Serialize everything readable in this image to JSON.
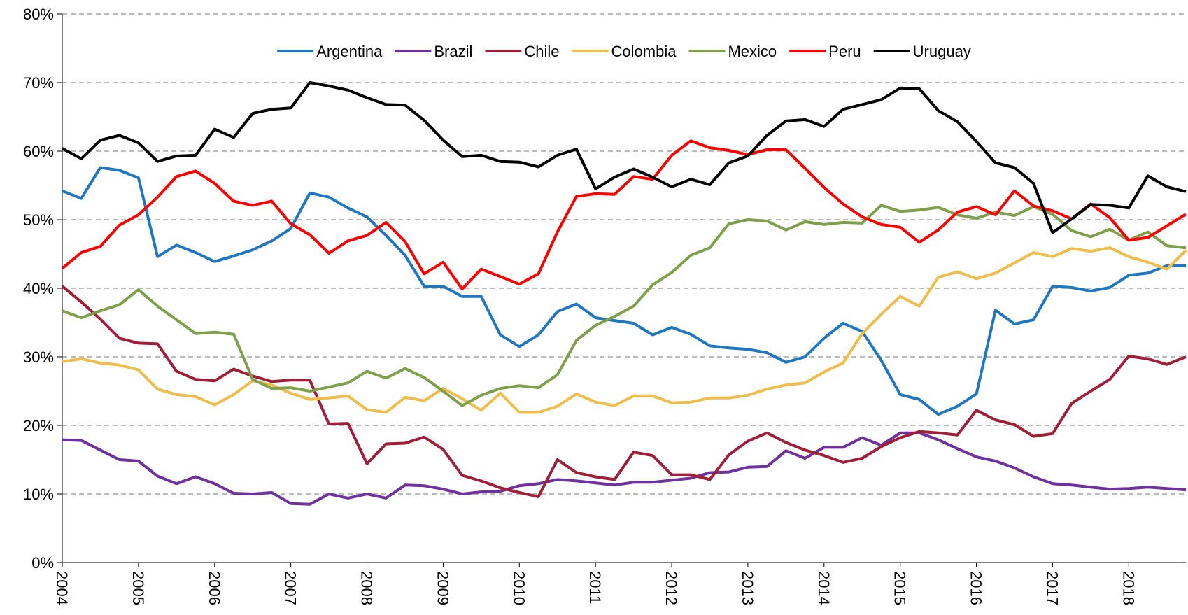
{
  "chart_data": {
    "type": "line",
    "categories": [
      "2004",
      null,
      null,
      null,
      "2005",
      null,
      null,
      null,
      "2006",
      null,
      null,
      null,
      "2007",
      null,
      null,
      null,
      "2008",
      null,
      null,
      null,
      "2009",
      null,
      null,
      null,
      "2010",
      null,
      null,
      null,
      "2011",
      null,
      null,
      null,
      "2012",
      null,
      null,
      null,
      "2013",
      null,
      null,
      null,
      "2014",
      null,
      null,
      null,
      "2015",
      null,
      null,
      null,
      "2016",
      null,
      null,
      null,
      "2017",
      null,
      null,
      null,
      "2018",
      null,
      null,
      null
    ],
    "ylim": [
      0,
      80
    ],
    "yticks": [
      {
        "value": 0,
        "label": "0%"
      },
      {
        "value": 10,
        "label": "10%"
      },
      {
        "value": 20,
        "label": "20%"
      },
      {
        "value": 30,
        "label": "30%"
      },
      {
        "value": 40,
        "label": "40%"
      },
      {
        "value": 50,
        "label": "50%"
      },
      {
        "value": 60,
        "label": "60%"
      },
      {
        "value": 70,
        "label": "70%"
      },
      {
        "value": 80,
        "label": "80%"
      }
    ],
    "grid": true,
    "legend": "top",
    "series": [
      {
        "name": "Argentina",
        "color": "#1f77c4",
        "values": [
          54.2,
          53.1,
          57.6,
          57.2,
          56.1,
          44.6,
          46.3,
          45.2,
          43.9,
          44.7,
          45.6,
          46.9,
          48.7,
          53.9,
          53.3,
          51.7,
          50.4,
          47.7,
          44.8,
          40.3,
          40.3,
          38.8,
          38.8,
          33.2,
          31.5,
          33.2,
          36.6,
          37.7,
          35.7,
          35.3,
          34.9,
          33.2,
          34.3,
          33.3,
          31.6,
          31.3,
          31.1,
          30.6,
          29.2,
          30.0,
          32.7,
          34.9,
          33.7,
          29.5,
          24.5,
          23.8,
          21.6,
          22.8,
          24.6,
          36.8,
          34.8,
          35.4,
          40.3,
          40.1,
          39.6,
          40.1,
          41.9,
          42.2,
          43.3,
          43.3
        ]
      },
      {
        "name": "Brazil",
        "color": "#7030a0",
        "values": [
          17.9,
          17.8,
          16.4,
          15.0,
          14.8,
          12.6,
          11.5,
          12.5,
          11.5,
          10.1,
          10.0,
          10.2,
          8.6,
          8.5,
          10.0,
          9.4,
          10.0,
          9.4,
          11.3,
          11.2,
          10.7,
          10.0,
          10.3,
          10.4,
          11.2,
          11.5,
          12.1,
          11.9,
          11.6,
          11.3,
          11.7,
          11.7,
          12.0,
          12.3,
          13.1,
          13.2,
          13.9,
          14.0,
          16.3,
          15.2,
          16.8,
          16.8,
          18.2,
          17.1,
          18.9,
          18.9,
          17.9,
          16.6,
          15.4,
          14.8,
          13.8,
          12.5,
          11.5,
          11.3,
          11.0,
          10.7,
          10.8,
          11.0,
          10.8,
          10.6
        ]
      },
      {
        "name": "Chile",
        "color": "#a31d36",
        "values": [
          40.3,
          38.0,
          35.5,
          32.7,
          32.0,
          31.9,
          27.9,
          26.7,
          26.5,
          28.2,
          27.2,
          26.4,
          26.6,
          26.6,
          20.2,
          20.3,
          14.4,
          17.3,
          17.4,
          18.3,
          16.5,
          12.7,
          11.9,
          10.9,
          10.2,
          9.6,
          15.0,
          13.1,
          12.5,
          12.1,
          16.1,
          15.6,
          12.8,
          12.8,
          12.1,
          15.7,
          17.7,
          18.9,
          17.5,
          16.4,
          15.6,
          14.6,
          15.2,
          16.9,
          18.2,
          19.1,
          18.9,
          18.6,
          22.2,
          20.8,
          20.1,
          18.4,
          18.8,
          23.2,
          25.0,
          26.7,
          30.1,
          29.7,
          28.9,
          30.0
        ]
      },
      {
        "name": "Colombia",
        "color": "#f0bc4a",
        "values": [
          29.3,
          29.7,
          29.1,
          28.8,
          28.1,
          25.3,
          24.5,
          24.2,
          23.0,
          24.5,
          26.5,
          25.9,
          24.7,
          23.8,
          24.0,
          24.3,
          22.3,
          21.9,
          24.1,
          23.6,
          25.4,
          23.9,
          22.2,
          24.7,
          21.9,
          21.9,
          22.8,
          24.6,
          23.4,
          22.9,
          24.3,
          24.3,
          23.3,
          23.4,
          24.0,
          24.0,
          24.4,
          25.3,
          25.9,
          26.2,
          27.8,
          29.1,
          33.4,
          36.2,
          38.8,
          37.4,
          41.6,
          42.4,
          41.4,
          42.2,
          43.7,
          45.2,
          44.6,
          45.8,
          45.4,
          45.9,
          44.6,
          43.8,
          42.8,
          45.5
        ]
      },
      {
        "name": "Mexico",
        "color": "#7fa04a",
        "values": [
          36.7,
          35.7,
          36.7,
          37.6,
          39.8,
          37.4,
          35.4,
          33.4,
          33.6,
          33.3,
          26.7,
          25.4,
          25.5,
          25.0,
          25.6,
          26.2,
          27.9,
          26.9,
          28.3,
          27.0,
          25.0,
          22.9,
          24.4,
          25.4,
          25.8,
          25.5,
          27.4,
          32.4,
          34.6,
          35.9,
          37.4,
          40.5,
          42.3,
          44.8,
          45.9,
          49.4,
          50.0,
          49.8,
          48.5,
          49.7,
          49.3,
          49.6,
          49.5,
          52.1,
          51.2,
          51.4,
          51.8,
          50.7,
          50.2,
          51.1,
          50.6,
          51.9,
          50.8,
          48.4,
          47.5,
          48.6,
          47.0,
          48.2,
          46.2,
          45.9
        ]
      },
      {
        "name": "Peru",
        "color": "#ff0000",
        "values": [
          42.9,
          45.2,
          46.1,
          49.2,
          50.7,
          53.3,
          56.3,
          57.1,
          55.3,
          52.7,
          52.1,
          52.7,
          49.4,
          47.8,
          45.1,
          46.9,
          47.7,
          49.6,
          46.8,
          42.1,
          43.8,
          39.9,
          42.8,
          41.7,
          40.6,
          42.1,
          48.2,
          53.4,
          53.8,
          53.7,
          56.3,
          55.9,
          59.4,
          61.5,
          60.5,
          60.1,
          59.5,
          60.2,
          60.2,
          57.5,
          54.7,
          52.3,
          50.4,
          49.3,
          48.9,
          46.7,
          48.5,
          51.1,
          51.9,
          50.7,
          54.2,
          52.0,
          51.3,
          50.1,
          52.3,
          50.3,
          47.0,
          47.4,
          49.1,
          50.8
        ]
      },
      {
        "name": "Uruguay",
        "color": "#000000",
        "values": [
          60.4,
          58.9,
          61.6,
          62.3,
          61.2,
          58.5,
          59.3,
          59.4,
          63.2,
          62.0,
          65.5,
          66.1,
          66.3,
          70.0,
          69.5,
          68.9,
          67.8,
          66.8,
          66.7,
          64.5,
          61.6,
          59.2,
          59.4,
          58.5,
          58.4,
          57.7,
          59.4,
          60.3,
          54.5,
          56.2,
          57.4,
          56.2,
          54.8,
          55.9,
          55.1,
          58.3,
          59.3,
          62.3,
          64.4,
          64.6,
          63.6,
          66.1,
          66.8,
          67.5,
          69.2,
          69.1,
          65.9,
          64.3,
          61.4,
          58.3,
          57.6,
          55.3,
          48.1,
          50.1,
          52.2,
          52.1,
          51.7,
          56.4,
          54.8,
          54.1
        ]
      }
    ]
  }
}
